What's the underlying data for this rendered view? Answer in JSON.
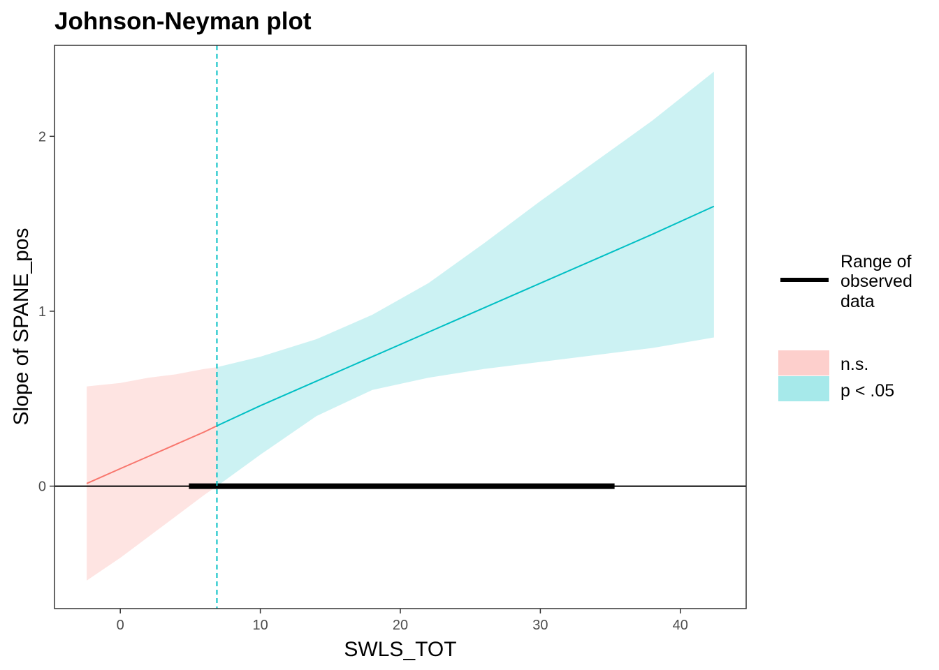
{
  "chart_data": {
    "type": "line",
    "title": "Johnson-Neyman plot",
    "xlabel": "SWLS_TOT",
    "ylabel": "Slope of SPANE_pos",
    "xlim": [
      -4.7,
      44.7
    ],
    "ylim": [
      -0.7,
      2.52
    ],
    "x_ticks": [
      0,
      10,
      20,
      30,
      40
    ],
    "y_ticks": [
      0,
      1,
      2
    ],
    "x_tick_labels": [
      "0",
      "10",
      "20",
      "30",
      "40"
    ],
    "y_tick_labels": [
      "0",
      "1",
      "2"
    ],
    "grid": false,
    "legend_position": "right",
    "johnson_neyman_point": 6.9,
    "reference_line_y": 0,
    "observed_range": [
      4.9,
      35.3
    ],
    "series": [
      {
        "name": "n.s.",
        "color": "#F8766D",
        "fill": "#F8766D",
        "x": [
          -2.4,
          0,
          2,
          4,
          6,
          6.9
        ],
        "y": [
          0.015,
          0.1,
          0.17,
          0.24,
          0.31,
          0.345
        ],
        "lower": [
          -0.54,
          -0.41,
          -0.29,
          -0.17,
          -0.05,
          0.0
        ],
        "upper": [
          0.57,
          0.59,
          0.62,
          0.64,
          0.67,
          0.68
        ]
      },
      {
        "name": "p < .05",
        "color": "#00BFC4",
        "fill": "#00BFC4",
        "x": [
          6.9,
          10,
          14,
          18,
          22,
          26,
          30,
          34,
          38,
          42.4
        ],
        "y": [
          0.345,
          0.46,
          0.6,
          0.74,
          0.88,
          1.02,
          1.16,
          1.3,
          1.44,
          1.6
        ],
        "lower": [
          0.0,
          0.18,
          0.4,
          0.55,
          0.62,
          0.67,
          0.71,
          0.75,
          0.79,
          0.85
        ],
        "upper": [
          0.68,
          0.74,
          0.84,
          0.98,
          1.16,
          1.39,
          1.63,
          1.86,
          2.09,
          2.37
        ]
      }
    ],
    "legend": {
      "range_label_lines": [
        "Range of",
        "observed",
        "data"
      ],
      "items": [
        {
          "label": "n.s.",
          "color": "#F8766D"
        },
        {
          "label": "p < .05",
          "color": "#00BFC4"
        }
      ]
    }
  }
}
